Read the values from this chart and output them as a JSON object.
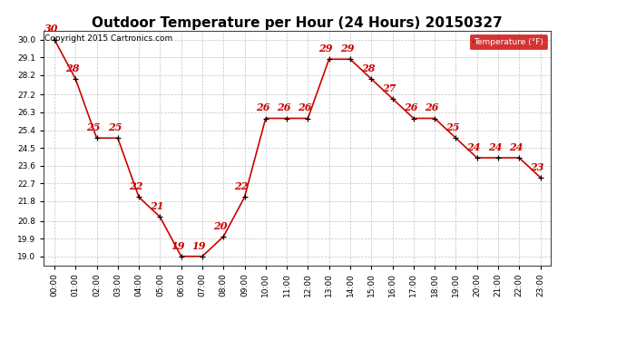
{
  "title": "Outdoor Temperature per Hour (24 Hours) 20150327",
  "copyright": "Copyright 2015 Cartronics.com",
  "legend_label": "Temperature (°F)",
  "hours": [
    "00:00",
    "01:00",
    "02:00",
    "03:00",
    "04:00",
    "05:00",
    "06:00",
    "07:00",
    "08:00",
    "09:00",
    "10:00",
    "11:00",
    "12:00",
    "13:00",
    "14:00",
    "15:00",
    "16:00",
    "17:00",
    "18:00",
    "19:00",
    "20:00",
    "21:00",
    "22:00",
    "23:00"
  ],
  "temps": [
    30,
    28,
    25,
    25,
    22,
    21,
    19,
    19,
    20,
    22,
    26,
    26,
    26,
    29,
    29,
    28,
    27,
    26,
    26,
    25,
    24,
    24,
    24,
    23
  ],
  "yticks": [
    19.0,
    19.9,
    20.8,
    21.8,
    22.7,
    23.6,
    24.5,
    25.4,
    26.3,
    27.2,
    28.2,
    29.1,
    30.0
  ],
  "ylim_min": 18.55,
  "ylim_max": 30.45,
  "line_color": "#cc0000",
  "marker_color": "#000000",
  "label_color": "#cc0000",
  "bg_color": "#ffffff",
  "grid_color": "#bbbbbb",
  "title_fontsize": 11,
  "label_fontsize": 6.5,
  "tick_fontsize": 6.5,
  "copyright_fontsize": 6.5
}
